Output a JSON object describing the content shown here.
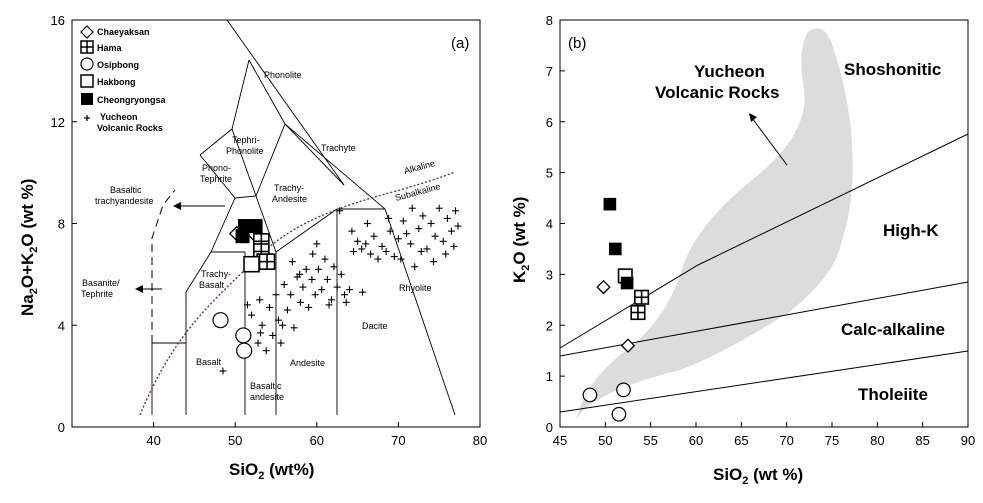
{
  "chart_data": [
    {
      "type": "scatter",
      "panel_label": "(a)",
      "xlabel": "SiO2 (wt%)",
      "ylabel": "Na2O+K2O (wt %)",
      "xlim": [
        30,
        80
      ],
      "ylim": [
        0,
        16
      ],
      "xticks": [
        "40",
        "50",
        "60",
        "70",
        "80"
      ],
      "yticks": [
        "0",
        "4",
        "8",
        "12",
        "16"
      ],
      "legend": [
        {
          "name": "Chaeyaksan",
          "marker": "diamond"
        },
        {
          "name": "Hama",
          "marker": "square-grid"
        },
        {
          "name": "Osipbong",
          "marker": "circle"
        },
        {
          "name": "Hakbong",
          "marker": "square"
        },
        {
          "name": "Cheongryongsa",
          "marker": "filled-square"
        },
        {
          "name": "Yucheon Volcanic Rocks",
          "marker": "plus"
        }
      ],
      "field_labels": [
        "Phonolite",
        "Tephri-Phonolite",
        "Phono-Tephrite",
        "Trachyte",
        "Trachy-Andesite",
        "Trachy-Basalt",
        "Basalt",
        "Basaltic andesite",
        "Andesite",
        "Dacite",
        "Rhyolite"
      ],
      "outside_labels": [
        "Basaltic trachyandesite",
        "Basanite/ Tephrite"
      ],
      "divider_labels": [
        "Alkaline",
        "Subalkaline"
      ],
      "series": [
        {
          "name": "Chaeyaksan",
          "points": [
            [
              50.2,
              7.6
            ],
            [
              52.3,
              7.6
            ]
          ]
        },
        {
          "name": "Hama",
          "points": [
            [
              53.2,
              7.3
            ],
            [
              53.2,
              6.9
            ],
            [
              53.6,
              6.5
            ],
            [
              53.9,
              6.5
            ]
          ]
        },
        {
          "name": "Osipbong",
          "points": [
            [
              48.2,
              4.2
            ],
            [
              51.0,
              3.6
            ],
            [
              51.1,
              3.0
            ]
          ]
        },
        {
          "name": "Hakbong",
          "points": [
            [
              52.0,
              6.4
            ]
          ]
        },
        {
          "name": "Cheongryongsa",
          "points": [
            [
              51.2,
              7.9
            ],
            [
              52.5,
              7.9
            ],
            [
              50.9,
              7.5
            ]
          ]
        },
        {
          "name": "Yucheon Volcanic Rocks",
          "points": [
            [
              48.5,
              2.2
            ],
            [
              51.2,
              3.4
            ],
            [
              51.5,
              4.8
            ],
            [
              52.0,
              4.4
            ],
            [
              52.8,
              3.3
            ],
            [
              53.0,
              5.0
            ],
            [
              53.3,
              4.0
            ],
            [
              53.8,
              3.0
            ],
            [
              54.2,
              4.7
            ],
            [
              54.6,
              3.6
            ],
            [
              55.0,
              5.2
            ],
            [
              55.3,
              4.2
            ],
            [
              55.6,
              3.3
            ],
            [
              56.0,
              5.6
            ],
            [
              56.4,
              4.6
            ],
            [
              56.8,
              5.2
            ],
            [
              57.2,
              3.9
            ],
            [
              57.6,
              5.9
            ],
            [
              58.0,
              4.9
            ],
            [
              58.3,
              5.5
            ],
            [
              58.7,
              6.2
            ],
            [
              59.0,
              4.7
            ],
            [
              59.4,
              5.8
            ],
            [
              59.8,
              5.2
            ],
            [
              60.2,
              6.2
            ],
            [
              60.6,
              5.4
            ],
            [
              61.0,
              6.6
            ],
            [
              61.3,
              5.8
            ],
            [
              61.8,
              5.0
            ],
            [
              62.1,
              6.3
            ],
            [
              62.5,
              5.5
            ],
            [
              63.0,
              6.0
            ],
            [
              63.4,
              5.2
            ],
            [
              64.0,
              5.4
            ],
            [
              64.5,
              6.9
            ],
            [
              65.0,
              7.3
            ],
            [
              65.5,
              7.0
            ],
            [
              66.0,
              7.2
            ],
            [
              66.6,
              6.8
            ],
            [
              67.0,
              7.5
            ],
            [
              67.5,
              6.6
            ],
            [
              68.0,
              7.1
            ],
            [
              68.5,
              6.9
            ],
            [
              69.0,
              7.7
            ],
            [
              69.5,
              6.7
            ],
            [
              70.0,
              7.4
            ],
            [
              70.6,
              8.1
            ],
            [
              71.0,
              7.6
            ],
            [
              71.5,
              7.2
            ],
            [
              72.0,
              6.3
            ],
            [
              72.5,
              7.8
            ],
            [
              73.0,
              8.3
            ],
            [
              73.5,
              7.0
            ],
            [
              74.0,
              8.0
            ],
            [
              74.5,
              7.5
            ],
            [
              75.0,
              8.6
            ],
            [
              75.5,
              7.3
            ],
            [
              76.0,
              8.2
            ],
            [
              76.5,
              7.7
            ],
            [
              77.0,
              8.5
            ],
            [
              77.3,
              7.9
            ],
            [
              57.0,
              6.5
            ],
            [
              59.5,
              6.8
            ],
            [
              62.8,
              8.5
            ],
            [
              66.2,
              8.0
            ],
            [
              64.3,
              7.7
            ],
            [
              72.8,
              6.9
            ],
            [
              70.3,
              6.6
            ],
            [
              75.8,
              6.8
            ],
            [
              68.8,
              8.2
            ],
            [
              55.8,
              4.0
            ],
            [
              61.5,
              4.8
            ],
            [
              57.9,
              6.0
            ],
            [
              60.0,
              7.2
            ],
            [
              63.6,
              4.9
            ],
            [
              53.1,
              3.7
            ],
            [
              74.3,
              6.5
            ],
            [
              76.8,
              7.1
            ],
            [
              65.6,
              5.3
            ],
            [
              71.7,
              8.6
            ]
          ]
        }
      ]
    },
    {
      "type": "scatter",
      "panel_label": "(b)",
      "xlabel": "SiO2 (wt %)",
      "ylabel": "K2O (wt %)",
      "xlim": [
        45,
        90
      ],
      "ylim": [
        0,
        8
      ],
      "xticks": [
        "45",
        "50",
        "55",
        "60",
        "65",
        "70",
        "75",
        "80",
        "85",
        "90"
      ],
      "yticks": [
        "0",
        "1",
        "2",
        "3",
        "4",
        "5",
        "6",
        "7",
        "8"
      ],
      "field_labels": [
        "Shoshonitic",
        "High-K",
        "Calc-alkaline",
        "Tholeiite"
      ],
      "annotation": "Yucheon Volcanic Rocks",
      "series": [
        {
          "name": "Chaeyaksan",
          "points": [
            [
              49.8,
              2.75
            ],
            [
              52.5,
              1.6
            ]
          ]
        },
        {
          "name": "Hama",
          "points": [
            [
              54.0,
              2.55
            ],
            [
              53.6,
              2.25
            ]
          ]
        },
        {
          "name": "Osipbong",
          "points": [
            [
              48.3,
              0.63
            ],
            [
              52.0,
              0.73
            ],
            [
              51.5,
              0.25
            ]
          ]
        },
        {
          "name": "Hakbong",
          "points": [
            [
              52.2,
              2.97
            ]
          ]
        },
        {
          "name": "Cheongryongsa",
          "points": [
            [
              50.5,
              4.38
            ],
            [
              51.1,
              3.5
            ],
            [
              52.4,
              2.83
            ]
          ]
        }
      ]
    }
  ]
}
